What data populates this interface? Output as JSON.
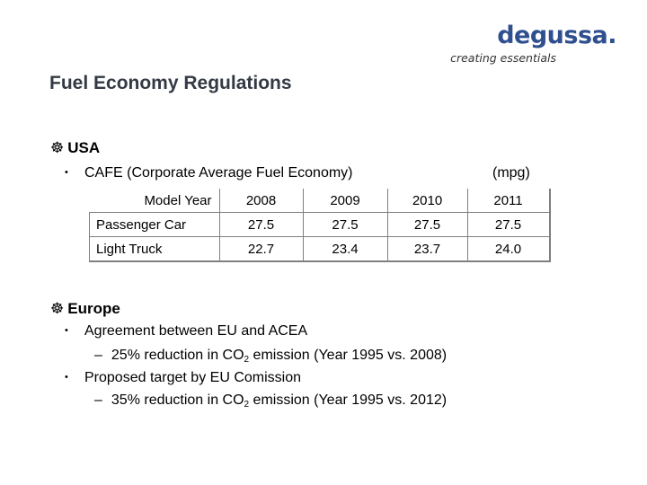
{
  "logo": {
    "word": "degussa.",
    "tagline": "creating essentials"
  },
  "title": "Fuel Economy Regulations",
  "usa": {
    "heading": "USA",
    "bullet": "CAFE (Corporate Average Fuel Economy)",
    "unit": "(mpg)",
    "table": {
      "corner": "Model Year",
      "years": [
        "2008",
        "2009",
        "2010",
        "2011"
      ],
      "rows": [
        {
          "label": "Passenger Car",
          "values": [
            "27.5",
            "27.5",
            "27.5",
            "27.5"
          ]
        },
        {
          "label": "Light Truck",
          "values": [
            "22.7",
            "23.4",
            "23.7",
            "24.0"
          ]
        }
      ]
    }
  },
  "europe": {
    "heading": "Europe",
    "bullet1": "Agreement between EU and ACEA",
    "sub1": {
      "pre": "25% reduction in CO",
      "sub": "2",
      "post": " emission (Year 1995 vs. 2008)"
    },
    "bullet2": "Proposed target by EU Comission",
    "sub2": {
      "pre": "35% reduction in CO",
      "sub": "2",
      "post": " emission (Year 1995 vs. 2012)"
    }
  },
  "colors": {
    "logo": "#2f4f8f",
    "title": "#333a44",
    "table_border": "#808080"
  },
  "icons": {
    "level1_bullet": "gear-icon",
    "level2_bullet": "bullet-dot-icon",
    "level3_bullet": "dash-icon"
  }
}
